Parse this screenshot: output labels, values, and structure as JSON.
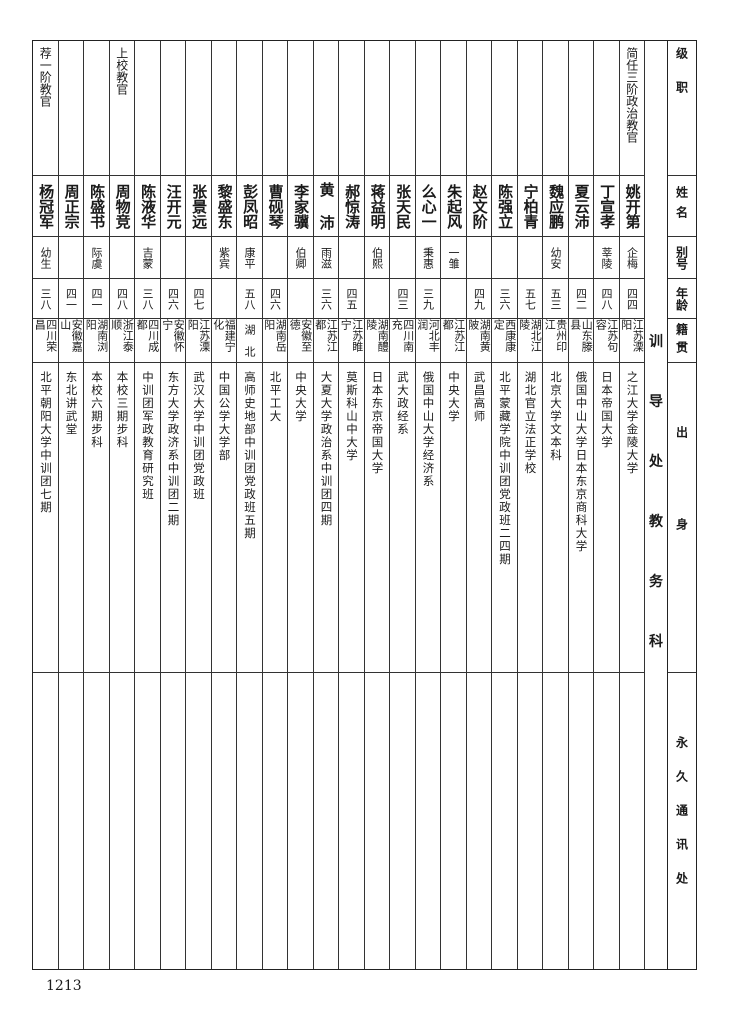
{
  "header": {
    "rank": "级职",
    "name": "姓名",
    "alias": "别号",
    "age": "年龄",
    "native": "籍贯",
    "origin": "出身",
    "address": "永久通讯处"
  },
  "department": [
    "训",
    "导",
    "处",
    "教",
    "务",
    "科"
  ],
  "people": [
    {
      "rank": "简任三阶政治教官",
      "name": "姚开第",
      "alias": "企梅",
      "age": "四四",
      "native": "江苏溧阳",
      "origin": "之江大学金陵大学"
    },
    {
      "rank": "",
      "name": "丁宣孝",
      "alias": "莘陵",
      "age": "四八",
      "native": "江苏句容",
      "origin": "日本帝国大学"
    },
    {
      "rank": "",
      "name": "夏云沛",
      "alias": "",
      "age": "四二",
      "native": "山东滕县",
      "origin": "俄国中山大学日本东京商科大学"
    },
    {
      "rank": "",
      "name": "魏应鹏",
      "alias": "幼安",
      "age": "五三",
      "native": "贵州印江",
      "origin": "北京大学文本科"
    },
    {
      "rank": "",
      "name": "宁柏青",
      "alias": "",
      "age": "五七",
      "native": "湖北江陵",
      "origin": "湖北官立法正学校"
    },
    {
      "rank": "",
      "name": "陈强立",
      "alias": "",
      "age": "三六",
      "native": "西康康定",
      "origin": "北平蒙藏学院中训团党政班二四期"
    },
    {
      "rank": "",
      "name": "赵文阶",
      "alias": "",
      "age": "四九",
      "native": "湖南黄陂",
      "origin": "武昌高师"
    },
    {
      "rank": "",
      "name": "朱起风",
      "alias": "一雏",
      "age": "",
      "native": "江苏江都",
      "origin": "中央大学"
    },
    {
      "rank": "",
      "name": "么心一",
      "alias": "秉惠",
      "age": "三九",
      "native": "河北丰润",
      "origin": "俄国中山大学经济系"
    },
    {
      "rank": "",
      "name": "张天民",
      "alias": "",
      "age": "四三",
      "native": "四川南充",
      "origin": "武大政经系"
    },
    {
      "rank": "",
      "name": "蒋益明",
      "alias": "伯熙",
      "age": "",
      "native": "湖南醴陵",
      "origin": "日本东京帝国大学"
    },
    {
      "rank": "",
      "name": "郝惊涛",
      "alias": "",
      "age": "四五",
      "native": "江苏睢宁",
      "origin": "莫斯科山中大学"
    },
    {
      "rank": "",
      "name": "黄 沛",
      "alias": "雨滋",
      "age": "三六",
      "native": "江苏江都",
      "origin": "大夏大学政治系中训团四期"
    },
    {
      "rank": "",
      "name": "李家骥",
      "alias": "伯卿",
      "age": "",
      "native": "安徽至德",
      "origin": "中央大学"
    },
    {
      "rank": "",
      "name": "曹砚琴",
      "alias": "",
      "age": "四六",
      "native": "湖南岳阳",
      "origin": "北平工大"
    },
    {
      "rank": "",
      "name": "彭凤昭",
      "alias": "康平",
      "age": "五八",
      "native": "湖　北",
      "origin": "高师史地部中训团党政班五期"
    },
    {
      "rank": "",
      "name": "黎盛东",
      "alias": "紫宾",
      "age": "",
      "native": "福建宁化",
      "origin": "中国公学大学部"
    },
    {
      "rank": "",
      "name": "张景远",
      "alias": "",
      "age": "四七",
      "native": "江苏溧阳",
      "origin": "武汉大学中训团党政班"
    },
    {
      "rank": "",
      "name": "汪开元",
      "alias": "",
      "age": "四六",
      "native": "安徽怀宁",
      "origin": "东方大学政济系中训团二期"
    },
    {
      "rank": "",
      "name": "陈液华",
      "alias": "吉蒙",
      "age": "三八",
      "native": "四川成都",
      "origin": "中训团军政教育研究班"
    },
    {
      "rank": "上校教官",
      "name": "周物竞",
      "alias": "",
      "age": "四八",
      "native": "浙江泰顺",
      "origin": "本校三期步科"
    },
    {
      "rank": "",
      "name": "陈盛书",
      "alias": "际虞",
      "age": "四一",
      "native": "湖南浏阳",
      "origin": "本校六期步科"
    },
    {
      "rank": "",
      "name": "周正宗",
      "alias": "",
      "age": "四一",
      "native": "安徽嘉山",
      "origin": "东北讲武堂"
    },
    {
      "rank": "荐一阶教官",
      "name": "杨冠军",
      "alias": "幼生",
      "age": "三八",
      "native": "四川荣昌",
      "origin": "北平朝阳大学中训团七期"
    }
  ],
  "page_number": "1213"
}
